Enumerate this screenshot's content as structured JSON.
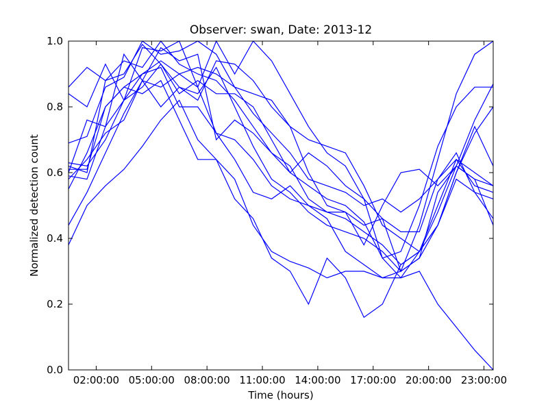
{
  "chart_data": {
    "type": "line",
    "title": "Observer: swan, Date: 2013-12",
    "xlabel": "Time (hours)",
    "ylabel": "Normalized detection count",
    "x_ticks": [
      "02:00:00",
      "05:00:00",
      "08:00:00",
      "11:00:00",
      "14:00:00",
      "17:00:00",
      "20:00:00",
      "23:00:00"
    ],
    "y_ticks": [
      "0.0",
      "0.2",
      "0.4",
      "0.6",
      "0.8",
      "1.0"
    ],
    "xlim": [
      "00:30:00",
      "23:30:00"
    ],
    "ylim": [
      0,
      1
    ],
    "grid": false,
    "legend": "none",
    "line_color": "#0000ff",
    "x": [
      "00:30:00",
      "01:30:00",
      "02:30:00",
      "03:30:00",
      "04:30:00",
      "05:30:00",
      "06:30:00",
      "07:30:00",
      "08:30:00",
      "09:30:00",
      "10:30:00",
      "11:30:00",
      "12:30:00",
      "13:30:00",
      "14:30:00",
      "15:30:00",
      "16:30:00",
      "17:30:00",
      "18:30:00",
      "19:30:00",
      "20:30:00",
      "21:30:00",
      "22:30:00",
      "23:30:00"
    ],
    "series": [
      {
        "values": [
          0.86,
          0.92,
          0.88,
          0.94,
          0.92,
          1.0,
          0.93,
          0.9,
          0.88,
          0.82,
          0.74,
          0.66,
          0.6,
          0.56,
          0.52,
          0.5,
          0.45,
          0.34,
          0.28,
          0.36,
          0.48,
          0.62,
          0.76,
          0.87
        ]
      },
      {
        "values": [
          0.84,
          0.8,
          0.93,
          0.82,
          0.98,
          0.97,
          1.0,
          0.86,
          1.0,
          0.9,
          1.0,
          0.94,
          0.84,
          0.74,
          0.66,
          0.62,
          0.52,
          0.46,
          0.3,
          0.44,
          0.64,
          0.84,
          0.96,
          1.0
        ]
      },
      {
        "values": [
          0.69,
          0.71,
          0.86,
          0.89,
          1.0,
          0.96,
          0.97,
          1.0,
          0.96,
          0.86,
          0.84,
          0.82,
          0.74,
          0.7,
          0.68,
          0.66,
          0.56,
          0.44,
          0.4,
          0.36,
          0.44,
          0.6,
          0.74,
          0.62
        ]
      },
      {
        "values": [
          0.62,
          0.6,
          0.88,
          0.9,
          0.99,
          0.93,
          0.86,
          0.82,
          0.94,
          0.93,
          0.88,
          0.8,
          0.74,
          0.6,
          0.5,
          0.48,
          0.38,
          0.5,
          0.6,
          0.61,
          0.56,
          0.62,
          0.58,
          0.56
        ]
      },
      {
        "values": [
          0.61,
          0.61,
          0.8,
          0.86,
          0.9,
          0.94,
          0.9,
          0.92,
          0.9,
          0.86,
          0.78,
          0.72,
          0.66,
          0.58,
          0.56,
          0.54,
          0.5,
          0.52,
          0.48,
          0.52,
          0.58,
          0.64,
          0.6,
          0.56
        ]
      },
      {
        "values": [
          0.6,
          0.76,
          0.74,
          0.96,
          0.88,
          0.8,
          0.86,
          0.84,
          0.92,
          0.8,
          0.68,
          0.58,
          0.54,
          0.48,
          0.44,
          0.42,
          0.4,
          0.36,
          0.3,
          0.34,
          0.44,
          0.6,
          0.72,
          0.8
        ]
      },
      {
        "values": [
          0.58,
          0.64,
          0.72,
          0.76,
          0.88,
          0.98,
          0.94,
          0.96,
          0.7,
          0.76,
          0.72,
          0.66,
          0.62,
          0.52,
          0.48,
          0.46,
          0.42,
          0.38,
          0.32,
          0.36,
          0.5,
          0.64,
          0.56,
          0.54
        ]
      },
      {
        "values": [
          0.44,
          0.54,
          0.66,
          0.78,
          0.88,
          0.86,
          0.9,
          0.86,
          0.72,
          0.64,
          0.54,
          0.52,
          0.56,
          0.5,
          0.48,
          0.48,
          0.44,
          0.46,
          0.42,
          0.42,
          0.58,
          0.66,
          0.54,
          0.52
        ]
      },
      {
        "values": [
          0.38,
          0.5,
          0.56,
          0.61,
          0.68,
          0.76,
          0.82,
          0.7,
          0.64,
          0.52,
          0.46,
          0.34,
          0.3,
          0.2,
          0.34,
          0.28,
          0.16,
          0.2,
          0.32,
          0.36,
          0.44,
          0.58,
          0.54,
          0.46
        ]
      },
      {
        "values": [
          0.55,
          0.66,
          0.8,
          0.86,
          0.84,
          0.88,
          0.76,
          0.64,
          0.64,
          0.58,
          0.44,
          0.36,
          0.33,
          0.31,
          0.28,
          0.3,
          0.3,
          0.28,
          0.28,
          0.3,
          0.2,
          0.13,
          0.06,
          0.0
        ]
      },
      {
        "values": [
          0.63,
          0.62,
          0.7,
          0.82,
          0.86,
          0.93,
          0.84,
          0.88,
          0.84,
          0.84,
          0.8,
          0.7,
          0.6,
          0.66,
          0.62,
          0.56,
          0.52,
          0.34,
          0.36,
          0.5,
          0.68,
          0.8,
          0.86,
          0.86
        ]
      },
      {
        "values": [
          0.59,
          0.58,
          0.74,
          0.82,
          0.9,
          0.92,
          0.8,
          0.8,
          0.72,
          0.7,
          0.64,
          0.56,
          0.52,
          0.5,
          0.46,
          0.36,
          0.32,
          0.28,
          0.3,
          0.34,
          0.54,
          0.62,
          0.58,
          0.44
        ]
      }
    ]
  }
}
